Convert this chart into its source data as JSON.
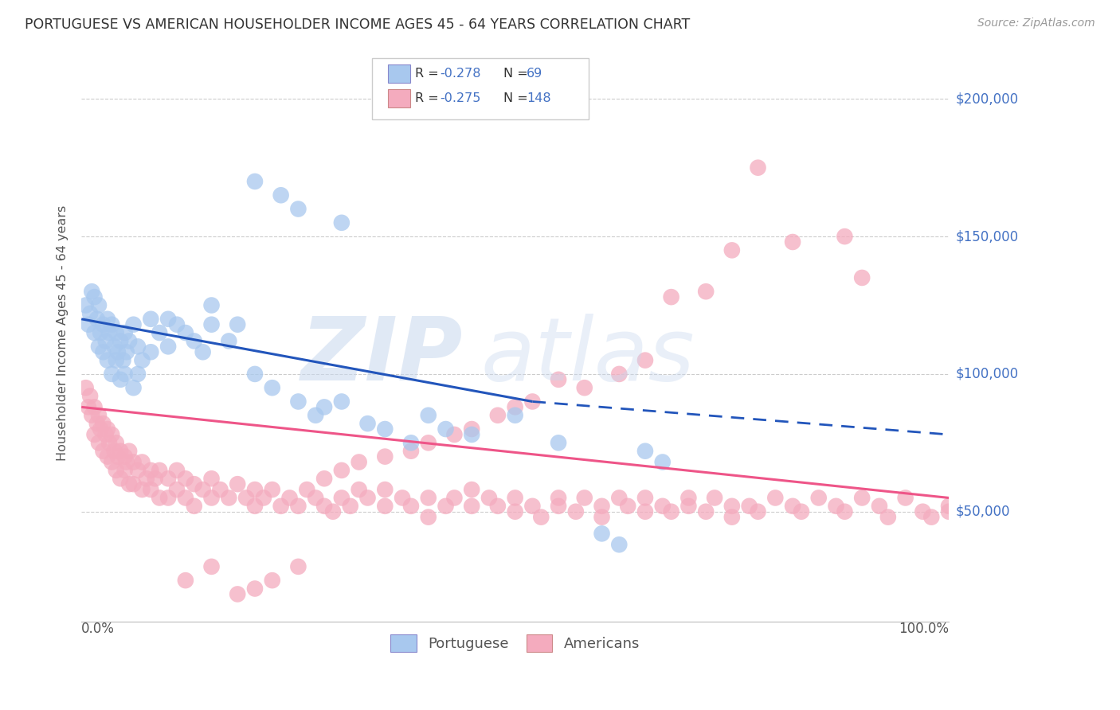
{
  "title": "PORTUGUESE VS AMERICAN HOUSEHOLDER INCOME AGES 45 - 64 YEARS CORRELATION CHART",
  "source": "Source: ZipAtlas.com",
  "ylabel": "Householder Income Ages 45 - 64 years",
  "xlim": [
    0.0,
    1.0
  ],
  "ylim": [
    10000,
    220000
  ],
  "portuguese_color": "#A8C8EE",
  "americans_color": "#F4ABBE",
  "trendline_blue": "#2255BB",
  "trendline_pink": "#EE5588",
  "legend_R_port": "R = -0.278",
  "legend_N_port": "N =  69",
  "legend_R_amer": "R = -0.275",
  "legend_N_amer": "N = 148",
  "port_x": [
    0.005,
    0.008,
    0.01,
    0.012,
    0.015,
    0.015,
    0.018,
    0.02,
    0.02,
    0.022,
    0.025,
    0.025,
    0.028,
    0.03,
    0.03,
    0.032,
    0.035,
    0.035,
    0.038,
    0.04,
    0.04,
    0.042,
    0.045,
    0.045,
    0.048,
    0.05,
    0.05,
    0.052,
    0.055,
    0.06,
    0.06,
    0.065,
    0.065,
    0.07,
    0.08,
    0.08,
    0.09,
    0.1,
    0.1,
    0.11,
    0.12,
    0.13,
    0.14,
    0.15,
    0.15,
    0.17,
    0.18,
    0.2,
    0.22,
    0.25,
    0.27,
    0.28,
    0.3,
    0.33,
    0.35,
    0.38,
    0.4,
    0.42,
    0.45,
    0.5,
    0.55,
    0.6,
    0.62,
    0.65,
    0.67,
    0.2,
    0.23,
    0.25,
    0.3
  ],
  "port_y": [
    125000,
    118000,
    122000,
    130000,
    128000,
    115000,
    120000,
    125000,
    110000,
    115000,
    118000,
    108000,
    112000,
    120000,
    105000,
    115000,
    118000,
    100000,
    110000,
    115000,
    105000,
    108000,
    112000,
    98000,
    105000,
    115000,
    100000,
    108000,
    112000,
    118000,
    95000,
    110000,
    100000,
    105000,
    120000,
    108000,
    115000,
    120000,
    110000,
    118000,
    115000,
    112000,
    108000,
    125000,
    118000,
    112000,
    118000,
    100000,
    95000,
    90000,
    85000,
    88000,
    90000,
    82000,
    80000,
    75000,
    85000,
    80000,
    78000,
    85000,
    75000,
    42000,
    38000,
    72000,
    68000,
    170000,
    165000,
    160000,
    155000
  ],
  "amer_x": [
    0.005,
    0.008,
    0.01,
    0.012,
    0.015,
    0.015,
    0.018,
    0.02,
    0.02,
    0.022,
    0.025,
    0.025,
    0.028,
    0.03,
    0.03,
    0.032,
    0.035,
    0.035,
    0.038,
    0.04,
    0.04,
    0.042,
    0.045,
    0.045,
    0.05,
    0.05,
    0.052,
    0.055,
    0.055,
    0.06,
    0.06,
    0.065,
    0.07,
    0.07,
    0.075,
    0.08,
    0.08,
    0.085,
    0.09,
    0.09,
    0.1,
    0.1,
    0.11,
    0.11,
    0.12,
    0.12,
    0.13,
    0.13,
    0.14,
    0.15,
    0.15,
    0.16,
    0.17,
    0.18,
    0.19,
    0.2,
    0.2,
    0.21,
    0.22,
    0.23,
    0.24,
    0.25,
    0.26,
    0.27,
    0.28,
    0.29,
    0.3,
    0.31,
    0.32,
    0.33,
    0.35,
    0.35,
    0.37,
    0.38,
    0.4,
    0.4,
    0.42,
    0.43,
    0.45,
    0.45,
    0.47,
    0.48,
    0.5,
    0.5,
    0.52,
    0.53,
    0.55,
    0.55,
    0.57,
    0.58,
    0.6,
    0.6,
    0.62,
    0.63,
    0.65,
    0.65,
    0.67,
    0.68,
    0.7,
    0.7,
    0.72,
    0.73,
    0.75,
    0.75,
    0.77,
    0.78,
    0.8,
    0.82,
    0.83,
    0.85,
    0.87,
    0.88,
    0.9,
    0.92,
    0.93,
    0.95,
    0.97,
    0.98,
    1.0,
    1.0,
    0.78,
    0.88,
    0.75,
    0.82,
    0.9,
    0.68,
    0.72,
    0.62,
    0.65,
    0.55,
    0.58,
    0.5,
    0.52,
    0.48,
    0.45,
    0.43,
    0.4,
    0.38,
    0.35,
    0.32,
    0.3,
    0.28,
    0.25,
    0.22,
    0.2,
    0.18,
    0.15,
    0.12
  ],
  "amer_y": [
    95000,
    88000,
    92000,
    85000,
    88000,
    78000,
    82000,
    85000,
    75000,
    80000,
    82000,
    72000,
    78000,
    80000,
    70000,
    75000,
    78000,
    68000,
    72000,
    75000,
    65000,
    70000,
    72000,
    62000,
    70000,
    65000,
    68000,
    72000,
    60000,
    68000,
    60000,
    65000,
    68000,
    58000,
    62000,
    65000,
    58000,
    62000,
    65000,
    55000,
    62000,
    55000,
    65000,
    58000,
    62000,
    55000,
    60000,
    52000,
    58000,
    62000,
    55000,
    58000,
    55000,
    60000,
    55000,
    58000,
    52000,
    55000,
    58000,
    52000,
    55000,
    52000,
    58000,
    55000,
    52000,
    50000,
    55000,
    52000,
    58000,
    55000,
    52000,
    58000,
    55000,
    52000,
    55000,
    48000,
    52000,
    55000,
    52000,
    58000,
    55000,
    52000,
    50000,
    55000,
    52000,
    48000,
    55000,
    52000,
    50000,
    55000,
    52000,
    48000,
    55000,
    52000,
    50000,
    55000,
    52000,
    50000,
    55000,
    52000,
    50000,
    55000,
    52000,
    48000,
    52000,
    50000,
    55000,
    52000,
    50000,
    55000,
    52000,
    50000,
    55000,
    52000,
    48000,
    55000,
    50000,
    48000,
    52000,
    50000,
    175000,
    150000,
    145000,
    148000,
    135000,
    128000,
    130000,
    100000,
    105000,
    98000,
    95000,
    88000,
    90000,
    85000,
    80000,
    78000,
    75000,
    72000,
    70000,
    68000,
    65000,
    62000,
    30000,
    25000,
    22000,
    20000,
    30000,
    25000
  ]
}
